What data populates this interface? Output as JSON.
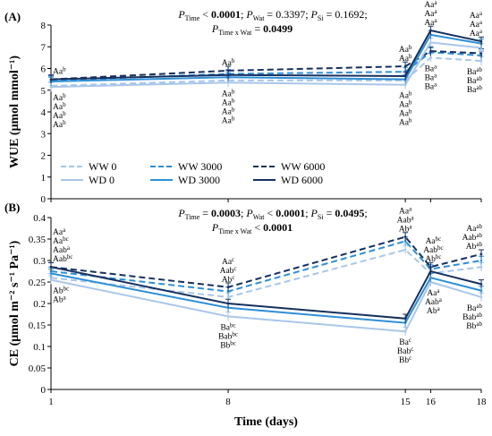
{
  "xlabel": "Time (days)",
  "x_ticks": [
    "1",
    "8",
    "15",
    "16",
    "18"
  ],
  "legend": [
    {
      "label": "WW 0",
      "color": "#a9c6ea",
      "dash": "dashed"
    },
    {
      "label": "WW 3000",
      "color": "#2e8fd6",
      "dash": "dashed"
    },
    {
      "label": "WW 6000",
      "color": "#16305f",
      "dash": "dashed"
    },
    {
      "label": "WD 0",
      "color": "#a9c6ea",
      "dash": "solid"
    },
    {
      "label": "WD 3000",
      "color": "#2e8fd6",
      "dash": "solid"
    },
    {
      "label": "WD 6000",
      "color": "#16305f",
      "dash": "solid"
    }
  ],
  "chart_data": [
    {
      "panel": "(A)",
      "type": "line",
      "ylabel": "WUE (μmol mmol⁻¹)",
      "ylim": [
        0,
        8
      ],
      "yticks": [
        "0",
        "1",
        "2",
        "3",
        "4",
        "5",
        "6",
        "7",
        "8"
      ],
      "x": [
        1,
        8,
        15,
        16,
        18
      ],
      "stats": [
        {
          "sym": "P",
          "sub": "Time",
          "rest": " < ",
          "val": "0.0001",
          "bold": true
        },
        {
          "sym": "P",
          "sub": "Wat",
          "rest": " = ",
          "val": "0.3397",
          "bold": false
        },
        {
          "sym": "P",
          "sub": "Si",
          "rest": " = ",
          "val": "0.1692",
          "bold": false
        }
      ],
      "stats_interaction": {
        "sym": "P",
        "sub": "Time x Wat",
        "rest": " = ",
        "val": "0.0499",
        "bold": true
      },
      "series": [
        {
          "name": "WW 0",
          "values": [
            5.2,
            5.45,
            5.45,
            6.5,
            6.35
          ]
        },
        {
          "name": "WW 3000",
          "values": [
            5.45,
            5.75,
            5.85,
            6.75,
            6.6
          ]
        },
        {
          "name": "WW 6000",
          "values": [
            5.5,
            5.9,
            6.1,
            6.8,
            6.7
          ]
        },
        {
          "name": "WD 0",
          "values": [
            5.15,
            5.35,
            5.25,
            7.2,
            6.95
          ]
        },
        {
          "name": "WD 3000",
          "values": [
            5.4,
            5.6,
            5.5,
            7.55,
            7.15
          ]
        },
        {
          "name": "WD 6000",
          "values": [
            5.5,
            5.7,
            5.65,
            7.75,
            7.25
          ]
        }
      ],
      "letters": [
        {
          "x": 1,
          "pos": "above",
          "items": [
            {
              "t": "Aa",
              "s": "b"
            }
          ]
        },
        {
          "x": 1,
          "pos": "below",
          "items": [
            {
              "t": "Aa",
              "s": "b"
            },
            {
              "t": "Aa",
              "s": "b"
            },
            {
              "t": "Aa",
              "s": "b"
            },
            {
              "t": "Aa",
              "s": "b"
            }
          ]
        },
        {
          "x": 8,
          "pos": "above",
          "items": [
            {
              "t": "Aa",
              "s": "b"
            }
          ]
        },
        {
          "x": 8,
          "pos": "below",
          "items": [
            {
              "t": "Aa",
              "s": "b"
            },
            {
              "t": "Aa",
              "s": "b"
            },
            {
              "t": "Aa",
              "s": "b"
            },
            {
              "t": "Aa",
              "s": "b"
            }
          ]
        },
        {
          "x": 15,
          "pos": "above",
          "items": [
            {
              "t": "Aa",
              "s": "b"
            },
            {
              "t": "Aa",
              "s": "b"
            }
          ]
        },
        {
          "x": 15,
          "pos": "below",
          "items": [
            {
              "t": "Aa",
              "s": "b"
            },
            {
              "t": "Aa",
              "s": "b"
            },
            {
              "t": "Aa",
              "s": "b"
            },
            {
              "t": "Aa",
              "s": "b"
            }
          ]
        },
        {
          "x": 16,
          "pos": "above",
          "items": [
            {
              "t": "Aa",
              "s": "a"
            },
            {
              "t": "Aa",
              "s": "a"
            },
            {
              "t": "Aa",
              "s": "a"
            }
          ]
        },
        {
          "x": 16,
          "pos": "below",
          "items": [
            {
              "t": "Ba",
              "s": "a"
            },
            {
              "t": "Ba",
              "s": "a"
            },
            {
              "t": "Ba",
              "s": "a"
            }
          ]
        },
        {
          "x": 18,
          "pos": "above",
          "items": [
            {
              "t": "Aa",
              "s": "a"
            },
            {
              "t": "Aa",
              "s": "a"
            },
            {
              "t": "Aa",
              "s": "a"
            }
          ]
        },
        {
          "x": 18,
          "pos": "below",
          "items": [
            {
              "t": "Ba",
              "s": "ab"
            },
            {
              "t": "Ba",
              "s": "ab"
            },
            {
              "t": "Ba",
              "s": "ab"
            }
          ]
        }
      ]
    },
    {
      "panel": "(B)",
      "type": "line",
      "ylabel": "CE (μmol m⁻² s⁻¹ Pa⁻¹)",
      "ylim": [
        0,
        0.4
      ],
      "yticks": [
        "0",
        "0.05",
        "0.1",
        "0.15",
        "0.2",
        "0.25",
        "0.3",
        "0.35",
        "0.4"
      ],
      "x": [
        1,
        8,
        15,
        16,
        18
      ],
      "stats": [
        {
          "sym": "P",
          "sub": "Time",
          "rest": " = ",
          "val": "0.0003",
          "bold": true
        },
        {
          "sym": "P",
          "sub": "Wat",
          "rest": " < ",
          "val": "0.0001",
          "bold": true
        },
        {
          "sym": "P",
          "sub": "Si",
          "rest": " = ",
          "val": "0.0495",
          "bold": true
        }
      ],
      "stats_interaction": {
        "sym": "P",
        "sub": "Time x Wat",
        "rest": " < ",
        "val": "0.0001",
        "bold": true
      },
      "series": [
        {
          "name": "WW 0",
          "values": [
            0.26,
            0.215,
            0.325,
            0.27,
            0.285
          ]
        },
        {
          "name": "WW 3000",
          "values": [
            0.275,
            0.228,
            0.345,
            0.28,
            0.3
          ]
        },
        {
          "name": "WW 6000",
          "values": [
            0.285,
            0.238,
            0.355,
            0.285,
            0.315
          ]
        },
        {
          "name": "WD 0",
          "values": [
            0.255,
            0.17,
            0.135,
            0.25,
            0.215
          ]
        },
        {
          "name": "WD 3000",
          "values": [
            0.27,
            0.19,
            0.155,
            0.26,
            0.23
          ]
        },
        {
          "name": "WD 6000",
          "values": [
            0.285,
            0.2,
            0.165,
            0.275,
            0.245
          ]
        }
      ],
      "letters": [
        {
          "x": 1,
          "pos": "above",
          "items": [
            {
              "t": "Aa",
              "s": "a"
            },
            {
              "t": "Aa",
              "s": "bc"
            },
            {
              "t": "Aab",
              "s": "a"
            },
            {
              "t": "Aab",
              "s": "bc"
            }
          ]
        },
        {
          "x": 1,
          "pos": "below",
          "items": [
            {
              "t": "Ab",
              "s": "bc"
            },
            {
              "t": "Ab",
              "s": "a"
            }
          ]
        },
        {
          "x": 8,
          "pos": "above",
          "items": [
            {
              "t": "Aa",
              "s": "c"
            },
            {
              "t": "Aab",
              "s": "c"
            },
            {
              "t": "Ab",
              "s": "c"
            }
          ]
        },
        {
          "x": 8,
          "pos": "below",
          "items": [
            {
              "t": "Ba",
              "s": "bc"
            },
            {
              "t": "Bab",
              "s": "bc"
            },
            {
              "t": "Bb",
              "s": "bc"
            }
          ]
        },
        {
          "x": 15,
          "pos": "above",
          "items": [
            {
              "t": "Aa",
              "s": "a"
            },
            {
              "t": "Aab",
              "s": "a"
            },
            {
              "t": "Ab",
              "s": "a"
            }
          ]
        },
        {
          "x": 15,
          "pos": "below",
          "items": [
            {
              "t": "Ba",
              "s": "c"
            },
            {
              "t": "Bab",
              "s": "c"
            },
            {
              "t": "Bb",
              "s": "c"
            }
          ]
        },
        {
          "x": 16,
          "pos": "above",
          "items": [
            {
              "t": "Aa",
              "s": "bc"
            },
            {
              "t": "Aab",
              "s": "bc"
            },
            {
              "t": "Ab",
              "s": "bc"
            }
          ]
        },
        {
          "x": 16,
          "pos": "below",
          "items": [
            {
              "t": "Aa",
              "s": "a"
            },
            {
              "t": "Aab",
              "s": "a"
            },
            {
              "t": "Ab",
              "s": "a"
            }
          ]
        },
        {
          "x": 18,
          "pos": "above",
          "items": [
            {
              "t": "Aa",
              "s": "ab"
            },
            {
              "t": "Aab",
              "s": "ab"
            },
            {
              "t": "Ab",
              "s": "ab"
            }
          ]
        },
        {
          "x": 18,
          "pos": "below",
          "items": [
            {
              "t": "Ba",
              "s": "ab"
            },
            {
              "t": "Bab",
              "s": "ab"
            },
            {
              "t": "Bb",
              "s": "ab"
            }
          ]
        }
      ]
    }
  ]
}
